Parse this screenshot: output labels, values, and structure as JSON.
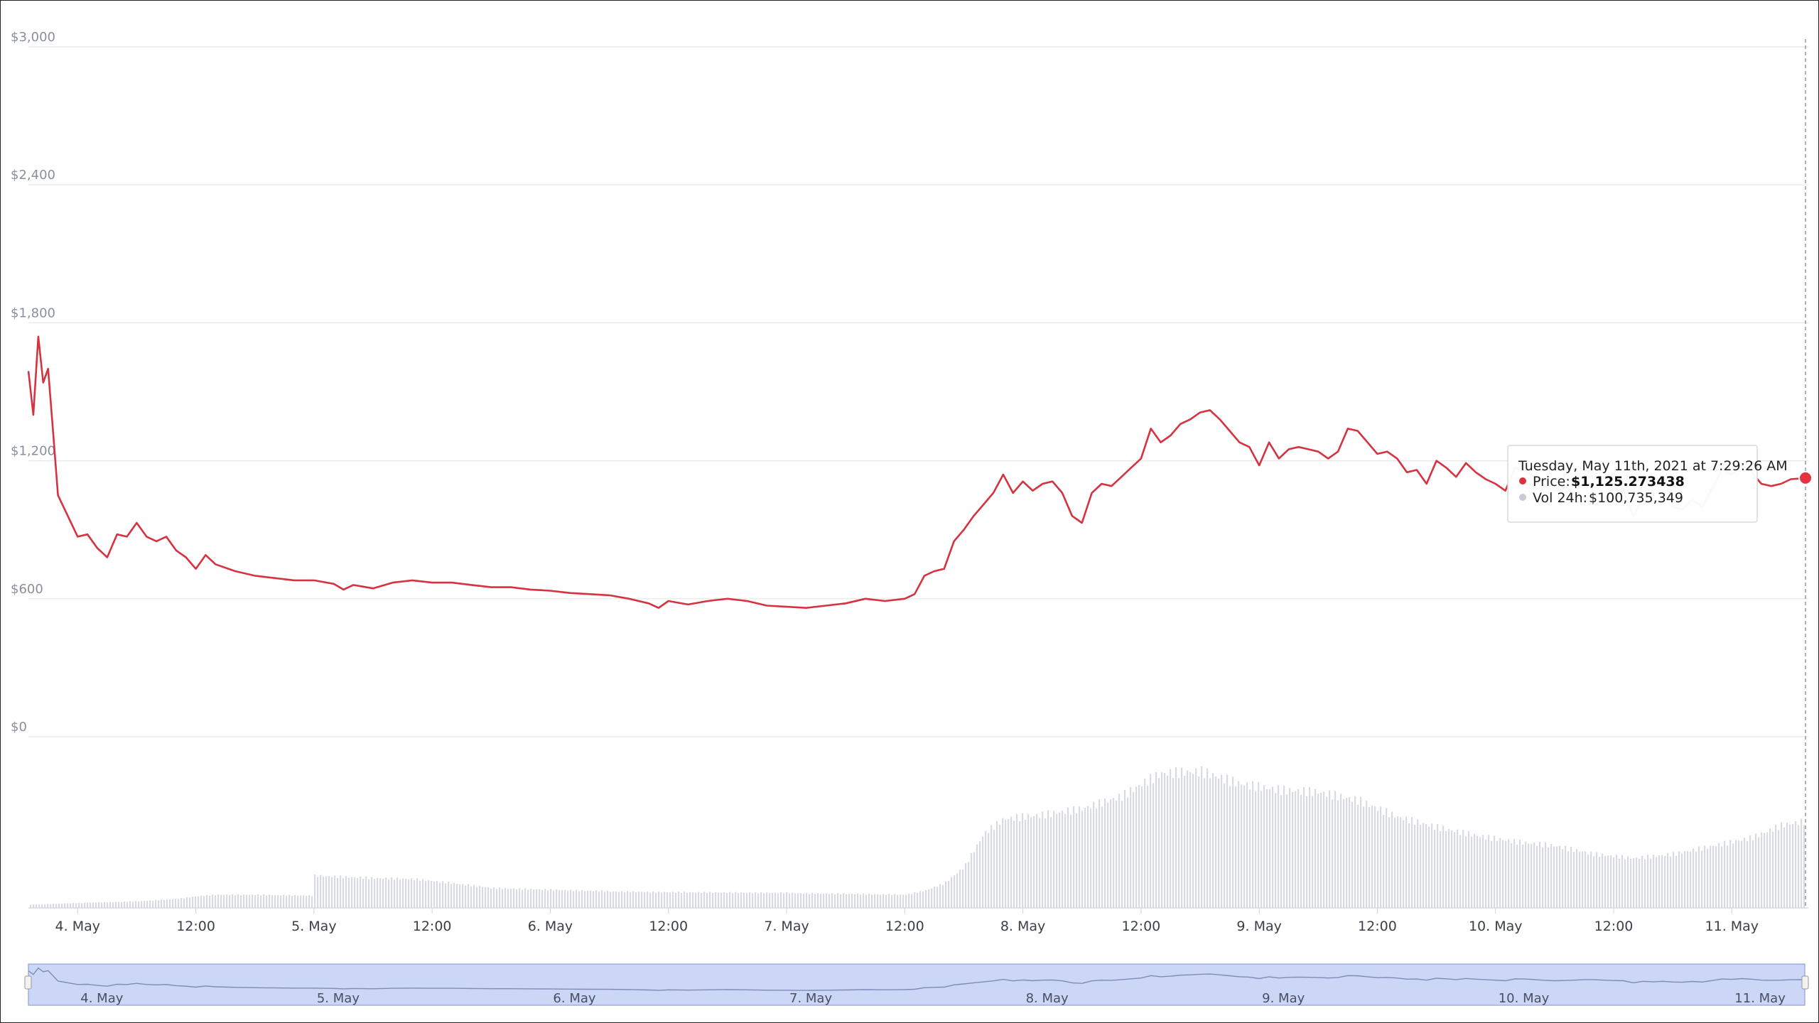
{
  "chart_data": {
    "type": "line",
    "y_axis": {
      "ticks": [
        "$3,000",
        "$2,400",
        "$1,800",
        "$1,200",
        "$600",
        "$0"
      ],
      "ylim": [
        0,
        3000
      ]
    },
    "x_axis": {
      "ticks": [
        "4. May",
        "12:00",
        "5. May",
        "12:00",
        "6. May",
        "12:00",
        "7. May",
        "12:00",
        "8. May",
        "12:00",
        "9. May",
        "12:00",
        "10. May",
        "12:00",
        "11. May"
      ]
    },
    "series": [
      {
        "kind": "price",
        "color": "#d7323f",
        "points": [
          [
            "2021-05-03T19:00",
            1590
          ],
          [
            "2021-05-03T19:30",
            1400
          ],
          [
            "2021-05-03T20:00",
            1740
          ],
          [
            "2021-05-03T20:30",
            1540
          ],
          [
            "2021-05-03T21:00",
            1600
          ],
          [
            "2021-05-03T21:30",
            1330
          ],
          [
            "2021-05-03T22:00",
            1050
          ],
          [
            "2021-05-04T00:00",
            870
          ],
          [
            "2021-05-04T01:00",
            880
          ],
          [
            "2021-05-04T02:00",
            820
          ],
          [
            "2021-05-04T03:00",
            780
          ],
          [
            "2021-05-04T04:00",
            880
          ],
          [
            "2021-05-04T05:00",
            870
          ],
          [
            "2021-05-04T06:00",
            930
          ],
          [
            "2021-05-04T07:00",
            870
          ],
          [
            "2021-05-04T08:00",
            850
          ],
          [
            "2021-05-04T09:00",
            870
          ],
          [
            "2021-05-04T10:00",
            810
          ],
          [
            "2021-05-04T11:00",
            780
          ],
          [
            "2021-05-04T12:00",
            730
          ],
          [
            "2021-05-04T13:00",
            790
          ],
          [
            "2021-05-04T14:00",
            750
          ],
          [
            "2021-05-04T16:00",
            720
          ],
          [
            "2021-05-04T18:00",
            700
          ],
          [
            "2021-05-04T20:00",
            690
          ],
          [
            "2021-05-04T22:00",
            680
          ],
          [
            "2021-05-05T00:00",
            680
          ],
          [
            "2021-05-05T02:00",
            665
          ],
          [
            "2021-05-05T03:00",
            640
          ],
          [
            "2021-05-05T04:00",
            660
          ],
          [
            "2021-05-05T06:00",
            645
          ],
          [
            "2021-05-05T08:00",
            670
          ],
          [
            "2021-05-05T10:00",
            680
          ],
          [
            "2021-05-05T12:00",
            670
          ],
          [
            "2021-05-05T14:00",
            670
          ],
          [
            "2021-05-05T16:00",
            660
          ],
          [
            "2021-05-05T18:00",
            650
          ],
          [
            "2021-05-05T20:00",
            650
          ],
          [
            "2021-05-05T22:00",
            640
          ],
          [
            "2021-05-06T00:00",
            635
          ],
          [
            "2021-05-06T02:00",
            625
          ],
          [
            "2021-05-06T04:00",
            620
          ],
          [
            "2021-05-06T06:00",
            615
          ],
          [
            "2021-05-06T08:00",
            600
          ],
          [
            "2021-05-06T10:00",
            580
          ],
          [
            "2021-05-06T11:00",
            560
          ],
          [
            "2021-05-06T12:00",
            590
          ],
          [
            "2021-05-06T14:00",
            575
          ],
          [
            "2021-05-06T16:00",
            590
          ],
          [
            "2021-05-06T18:00",
            600
          ],
          [
            "2021-05-06T20:00",
            590
          ],
          [
            "2021-05-06T22:00",
            570
          ],
          [
            "2021-05-07T00:00",
            565
          ],
          [
            "2021-05-07T02:00",
            560
          ],
          [
            "2021-05-07T04:00",
            570
          ],
          [
            "2021-05-07T06:00",
            580
          ],
          [
            "2021-05-07T08:00",
            600
          ],
          [
            "2021-05-07T10:00",
            590
          ],
          [
            "2021-05-07T12:00",
            600
          ],
          [
            "2021-05-07T13:00",
            620
          ],
          [
            "2021-05-07T14:00",
            700
          ],
          [
            "2021-05-07T15:00",
            720
          ],
          [
            "2021-05-07T16:00",
            730
          ],
          [
            "2021-05-07T17:00",
            850
          ],
          [
            "2021-05-07T18:00",
            900
          ],
          [
            "2021-05-07T19:00",
            960
          ],
          [
            "2021-05-07T20:00",
            1010
          ],
          [
            "2021-05-07T21:00",
            1060
          ],
          [
            "2021-05-07T22:00",
            1140
          ],
          [
            "2021-05-07T23:00",
            1060
          ],
          [
            "2021-05-08T00:00",
            1110
          ],
          [
            "2021-05-08T01:00",
            1070
          ],
          [
            "2021-05-08T02:00",
            1100
          ],
          [
            "2021-05-08T03:00",
            1110
          ],
          [
            "2021-05-08T04:00",
            1060
          ],
          [
            "2021-05-08T05:00",
            960
          ],
          [
            "2021-05-08T06:00",
            930
          ],
          [
            "2021-05-08T07:00",
            1060
          ],
          [
            "2021-05-08T08:00",
            1100
          ],
          [
            "2021-05-08T09:00",
            1090
          ],
          [
            "2021-05-08T10:00",
            1130
          ],
          [
            "2021-05-08T11:00",
            1170
          ],
          [
            "2021-05-08T12:00",
            1210
          ],
          [
            "2021-05-08T13:00",
            1340
          ],
          [
            "2021-05-08T14:00",
            1280
          ],
          [
            "2021-05-08T15:00",
            1310
          ],
          [
            "2021-05-08T16:00",
            1360
          ],
          [
            "2021-05-08T17:00",
            1380
          ],
          [
            "2021-05-08T18:00",
            1410
          ],
          [
            "2021-05-08T19:00",
            1420
          ],
          [
            "2021-05-08T20:00",
            1380
          ],
          [
            "2021-05-08T21:00",
            1330
          ],
          [
            "2021-05-08T22:00",
            1280
          ],
          [
            "2021-05-08T23:00",
            1260
          ],
          [
            "2021-05-09T00:00",
            1180
          ],
          [
            "2021-05-09T01:00",
            1280
          ],
          [
            "2021-05-09T02:00",
            1210
          ],
          [
            "2021-05-09T03:00",
            1250
          ],
          [
            "2021-05-09T04:00",
            1260
          ],
          [
            "2021-05-09T05:00",
            1250
          ],
          [
            "2021-05-09T06:00",
            1240
          ],
          [
            "2021-05-09T07:00",
            1210
          ],
          [
            "2021-05-09T08:00",
            1240
          ],
          [
            "2021-05-09T09:00",
            1340
          ],
          [
            "2021-05-09T10:00",
            1330
          ],
          [
            "2021-05-09T11:00",
            1280
          ],
          [
            "2021-05-09T12:00",
            1230
          ],
          [
            "2021-05-09T13:00",
            1240
          ],
          [
            "2021-05-09T14:00",
            1210
          ],
          [
            "2021-05-09T15:00",
            1150
          ],
          [
            "2021-05-09T16:00",
            1160
          ],
          [
            "2021-05-09T17:00",
            1100
          ],
          [
            "2021-05-09T18:00",
            1200
          ],
          [
            "2021-05-09T19:00",
            1170
          ],
          [
            "2021-05-09T20:00",
            1130
          ],
          [
            "2021-05-09T21:00",
            1190
          ],
          [
            "2021-05-09T22:00",
            1150
          ],
          [
            "2021-05-09T23:00",
            1120
          ],
          [
            "2021-05-10T00:00",
            1100
          ],
          [
            "2021-05-10T01:00",
            1070
          ],
          [
            "2021-05-10T02:00",
            1170
          ],
          [
            "2021-05-10T03:00",
            1160
          ],
          [
            "2021-05-10T04:00",
            1130
          ],
          [
            "2021-05-10T05:00",
            1090
          ],
          [
            "2021-05-10T06:00",
            1070
          ],
          [
            "2021-05-10T07:00",
            1080
          ],
          [
            "2021-05-10T08:00",
            1100
          ],
          [
            "2021-05-10T09:00",
            1130
          ],
          [
            "2021-05-10T10:00",
            1130
          ],
          [
            "2021-05-10T11:00",
            1100
          ],
          [
            "2021-05-10T12:00",
            1080
          ],
          [
            "2021-05-10T13:00",
            1070
          ],
          [
            "2021-05-10T14:00",
            960
          ],
          [
            "2021-05-10T15:00",
            1040
          ],
          [
            "2021-05-10T16:00",
            1010
          ],
          [
            "2021-05-10T17:00",
            1040
          ],
          [
            "2021-05-10T18:00",
            1000
          ],
          [
            "2021-05-10T19:00",
            990
          ],
          [
            "2021-05-10T20:00",
            1030
          ],
          [
            "2021-05-10T21:00",
            1000
          ],
          [
            "2021-05-10T22:00",
            1080
          ],
          [
            "2021-05-10T23:00",
            1160
          ],
          [
            "2021-05-11T00:00",
            1140
          ],
          [
            "2021-05-11T01:00",
            1180
          ],
          [
            "2021-05-11T02:00",
            1150
          ],
          [
            "2021-05-11T03:00",
            1100
          ],
          [
            "2021-05-11T04:00",
            1090
          ],
          [
            "2021-05-11T05:00",
            1100
          ],
          [
            "2021-05-11T06:00",
            1120
          ],
          [
            "2021-05-11T07:29",
            1125
          ]
        ]
      },
      {
        "kind": "volume",
        "color": "#c9ccd4",
        "points": [
          [
            "2021-05-03T19:00",
            8
          ],
          [
            "2021-05-04T00:00",
            12
          ],
          [
            "2021-05-04T06:00",
            16
          ],
          [
            "2021-05-04T10:00",
            22
          ],
          [
            "2021-05-04T12:00",
            28
          ],
          [
            "2021-05-04T14:00",
            32
          ],
          [
            "2021-05-04T18:00",
            32
          ],
          [
            "2021-05-04T22:00",
            30
          ],
          [
            "2021-05-04T23:59",
            30
          ],
          [
            "2021-05-05T00:00",
            78
          ],
          [
            "2021-05-05T06:00",
            72
          ],
          [
            "2021-05-05T10:00",
            70
          ],
          [
            "2021-05-05T14:00",
            60
          ],
          [
            "2021-05-05T18:00",
            48
          ],
          [
            "2021-05-06T00:00",
            44
          ],
          [
            "2021-05-06T06:00",
            40
          ],
          [
            "2021-05-06T12:00",
            38
          ],
          [
            "2021-05-06T18:00",
            37
          ],
          [
            "2021-05-07T00:00",
            36
          ],
          [
            "2021-05-07T06:00",
            34
          ],
          [
            "2021-05-07T12:00",
            32
          ],
          [
            "2021-05-07T14:00",
            42
          ],
          [
            "2021-05-07T16:00",
            60
          ],
          [
            "2021-05-07T18:00",
            100
          ],
          [
            "2021-05-07T20:00",
            180
          ],
          [
            "2021-05-07T22:00",
            215
          ],
          [
            "2021-05-08T02:00",
            225
          ],
          [
            "2021-05-08T06:00",
            240
          ],
          [
            "2021-05-08T10:00",
            270
          ],
          [
            "2021-05-08T12:00",
            300
          ],
          [
            "2021-05-08T14:00",
            325
          ],
          [
            "2021-05-08T18:00",
            330
          ],
          [
            "2021-05-08T22:00",
            300
          ],
          [
            "2021-05-09T02:00",
            285
          ],
          [
            "2021-05-09T06:00",
            280
          ],
          [
            "2021-05-09T10:00",
            260
          ],
          [
            "2021-05-09T14:00",
            220
          ],
          [
            "2021-05-09T18:00",
            195
          ],
          [
            "2021-05-09T22:00",
            175
          ],
          [
            "2021-05-10T02:00",
            160
          ],
          [
            "2021-05-10T06:00",
            150
          ],
          [
            "2021-05-10T10:00",
            130
          ],
          [
            "2021-05-10T14:00",
            120
          ],
          [
            "2021-05-10T18:00",
            130
          ],
          [
            "2021-05-10T22:00",
            150
          ],
          [
            "2021-05-11T02:00",
            170
          ],
          [
            "2021-05-11T05:00",
            200
          ],
          [
            "2021-05-11T07:29",
            210
          ]
        ]
      }
    ],
    "tooltip": {
      "title": "Tuesday, May 11th, 2021 at 7:29:26 AM",
      "price_label": "Price:",
      "price_value": "$1,125.273438",
      "price_color": "#d7323f",
      "vol_label": "Vol 24h:",
      "vol_value": "$100,735,349",
      "vol_color": "#c9ccd4"
    },
    "navigator": {
      "ticks": [
        "4. May",
        "5. May",
        "6. May",
        "7. May",
        "8. May",
        "9. May",
        "10. May",
        "11. May"
      ],
      "fill": "#ccd6f6",
      "outline": "#8fa0d8"
    }
  }
}
